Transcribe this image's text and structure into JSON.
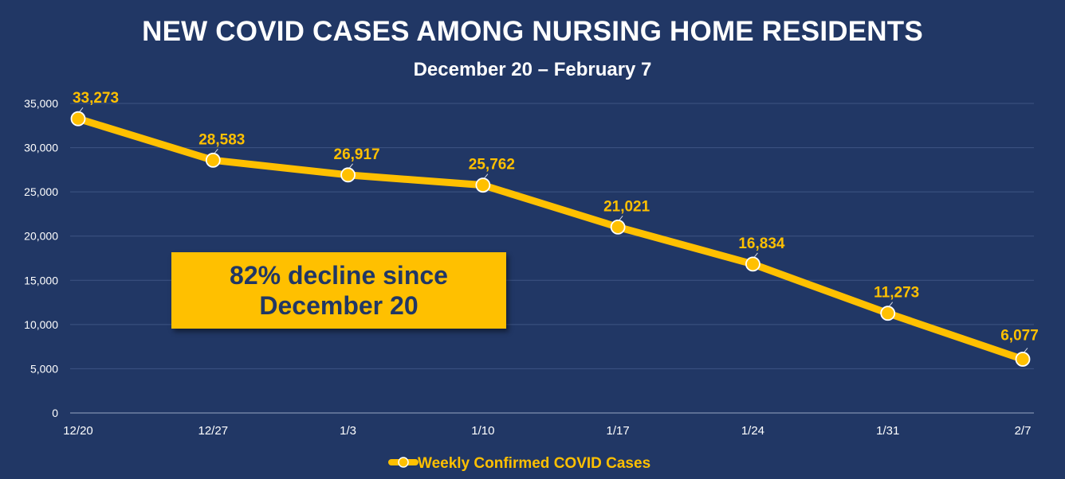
{
  "colors": {
    "background": "#213765",
    "series": "#ffc000",
    "label": "#ffc000",
    "gridline": "#3e5584",
    "text": "#ffffff",
    "callout_text": "#213765"
  },
  "callout": {
    "line1": "82% decline since",
    "line2": "December 20"
  },
  "chart_data": {
    "type": "line",
    "title": "NEW COVID CASES AMONG NURSING HOME RESIDENTS",
    "subtitle": "December 20 – February 7",
    "categories": [
      "12/20",
      "12/27",
      "1/3",
      "1/10",
      "1/17",
      "1/24",
      "1/31",
      "2/7"
    ],
    "series": [
      {
        "name": "Weekly Confirmed COVID Cases",
        "values": [
          33273,
          28583,
          26917,
          25762,
          21021,
          16834,
          11273,
          6077
        ],
        "labels": [
          "33,273",
          "28,583",
          "26,917",
          "25,762",
          "21,021",
          "16,834",
          "11,273",
          "6,077"
        ]
      }
    ],
    "y_ticks": [
      "0",
      "5,000",
      "10,000",
      "15,000",
      "20,000",
      "25,000",
      "30,000",
      "35,000"
    ],
    "ylim": [
      0,
      35000
    ],
    "grid": true,
    "legend_position": "bottom"
  }
}
